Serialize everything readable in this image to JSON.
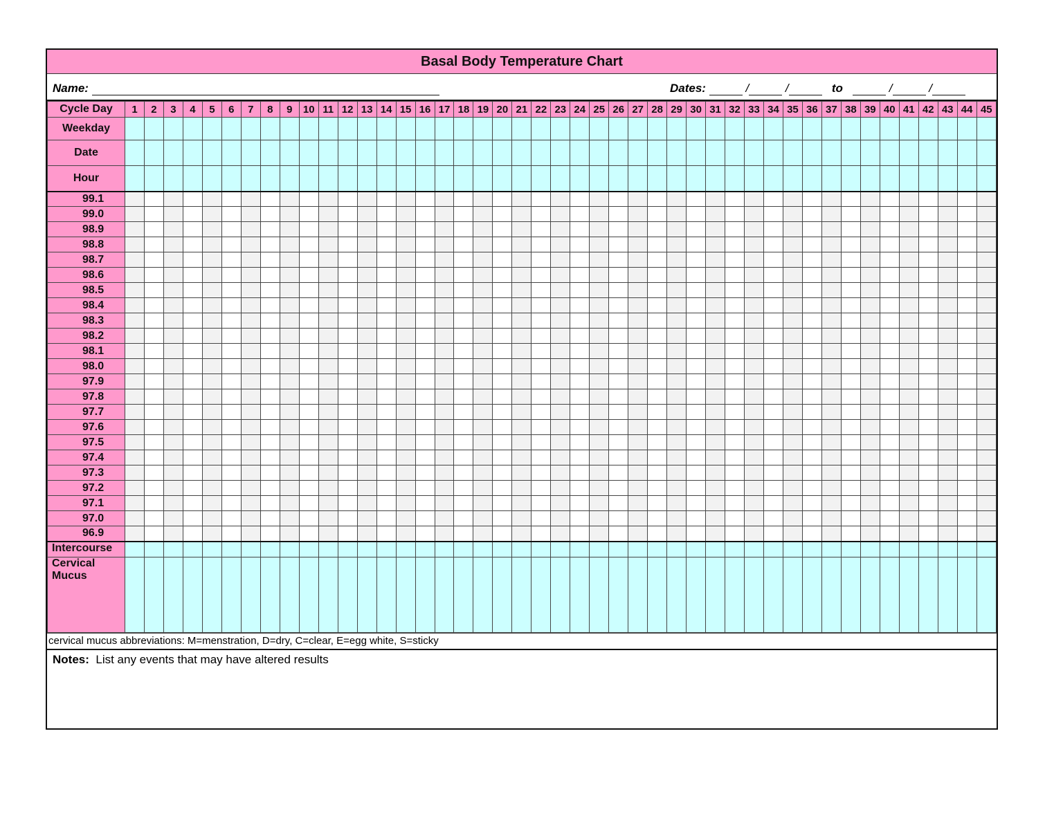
{
  "title": "Basal Body Temperature Chart",
  "name_label": "Name:",
  "dates_label": "Dates:",
  "dates_to": "to",
  "date_separator": "/",
  "row_labels": {
    "cycle_day": "Cycle Day",
    "weekday": "Weekday",
    "date": "Date",
    "hour": "Hour",
    "intercourse": "Intercourse",
    "cervical_mucus": "Cervical Mucus"
  },
  "cycle_days": 45,
  "temperatures": [
    "99.1",
    "99.0",
    "98.9",
    "98.8",
    "98.7",
    "98.6",
    "98.5",
    "98.4",
    "98.3",
    "98.2",
    "98.1",
    "98.0",
    "97.9",
    "97.8",
    "97.7",
    "97.6",
    "97.5",
    "97.4",
    "97.3",
    "97.2",
    "97.1",
    "97.0",
    "96.9"
  ],
  "abbreviations": "cervical mucus abbreviations: M=menstration, D=dry, C=clear, E=egg white, S=sticky",
  "notes_label": "Notes:",
  "notes_text": "List any events that may have altered results",
  "colors": {
    "header_pink": "#ff99cc",
    "entry_cyan": "#ccffff",
    "grid_gray": "#f2f2f2"
  }
}
